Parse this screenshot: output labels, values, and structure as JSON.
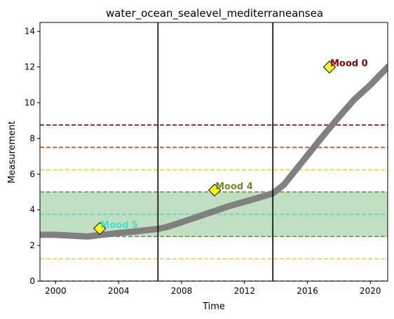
{
  "chart_data": {
    "type": "line",
    "title": "water_ocean_sealevel_mediterraneansea",
    "xlabel": "Time",
    "ylabel": "Measurement",
    "xlim": [
      1999.0,
      2021.1
    ],
    "ylim": [
      0,
      14.5
    ],
    "xticks": [
      2000,
      2004,
      2008,
      2012,
      2016,
      2020
    ],
    "yticks": [
      0,
      2,
      4,
      6,
      8,
      10,
      12,
      14
    ],
    "grid": false,
    "series": [
      {
        "color": "#808080",
        "x": [
          1999.0,
          2000.0,
          2001.0,
          2002.0,
          2003.0,
          2004.0,
          2005.0,
          2006.0,
          2006.5,
          2007.0,
          2008.0,
          2009.0,
          2010.0,
          2011.0,
          2012.0,
          2013.0,
          2013.8,
          2014.5,
          2015.0,
          2016.0,
          2017.0,
          2018.0,
          2019.0,
          2020.0,
          2021.1
        ],
        "y": [
          2.6,
          2.6,
          2.55,
          2.5,
          2.6,
          2.7,
          2.78,
          2.88,
          2.93,
          3.02,
          3.3,
          3.6,
          3.9,
          4.2,
          4.45,
          4.7,
          4.92,
          5.4,
          5.95,
          7.05,
          8.15,
          9.2,
          10.2,
          11.0,
          12.0
        ]
      }
    ],
    "vlines": [
      {
        "x": 2006.5,
        "color": "#000000"
      },
      {
        "x": 2013.8,
        "color": "#000000"
      }
    ],
    "hlines": [
      {
        "y": 0.0,
        "color": "#8b0000"
      },
      {
        "y": 1.25,
        "color": "#ffd700"
      },
      {
        "y": 2.5,
        "color": "#6b8e23"
      },
      {
        "y": 3.75,
        "color": "#40e0d0"
      },
      {
        "y": 5.0,
        "color": "#6b8e23"
      },
      {
        "y": 6.25,
        "color": "#ffd700"
      },
      {
        "y": 7.5,
        "color": "#ff4500"
      },
      {
        "y": 8.75,
        "color": "#8b0000"
      }
    ],
    "band": {
      "y0": 2.5,
      "y1": 5.0,
      "color": "#c0dfc0"
    },
    "annotations": [
      {
        "text": "Mood 0",
        "x": 2017.4,
        "y": 12.0,
        "color": "#8b0000"
      },
      {
        "text": "Mood 4",
        "x": 2010.1,
        "y": 5.1,
        "color": "#6b8e23"
      },
      {
        "text": "Mood 5",
        "x": 2002.8,
        "y": 2.95,
        "color": "#40e0d0"
      }
    ],
    "marker_color": "#ffff00"
  }
}
